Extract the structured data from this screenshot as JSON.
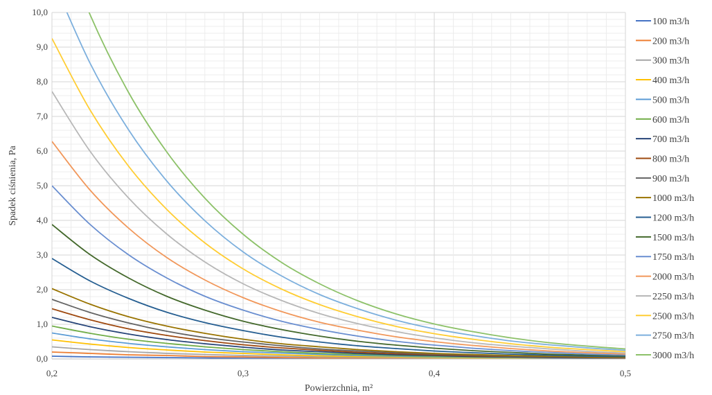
{
  "chart_data": {
    "type": "line",
    "title": "",
    "xlabel": "Powierzchnia, m²",
    "ylabel": "Spadek ciśnienia, Pa",
    "xlim": [
      0.2,
      0.5
    ],
    "ylim": [
      0,
      10
    ],
    "x_ticks": [
      "0,2",
      "0,3",
      "0,4",
      "0,5"
    ],
    "y_ticks": [
      "0,0",
      "1,0",
      "2,0",
      "3,0",
      "4,0",
      "5,0",
      "6,0",
      "7,0",
      "8,0",
      "9,0",
      "10,0"
    ],
    "grid": true,
    "legend_position": "right",
    "x": [
      0.2,
      0.22,
      0.24,
      0.26,
      0.28,
      0.3,
      0.32,
      0.34,
      0.36,
      0.38,
      0.4,
      0.42,
      0.44,
      0.46,
      0.48,
      0.5
    ],
    "series": [
      {
        "name": "100 m3/h",
        "color": "#4472C4",
        "values": [
          0.08,
          0.06,
          0.05,
          0.04,
          0.03,
          0.02,
          0.02,
          0.01,
          0.01,
          0.01,
          0.01,
          0.01,
          0.0,
          0.0,
          0.0,
          0.0
        ]
      },
      {
        "name": "200 m3/h",
        "color": "#ED7D31",
        "values": [
          0.2,
          0.16,
          0.12,
          0.1,
          0.07,
          0.06,
          0.04,
          0.03,
          0.03,
          0.02,
          0.02,
          0.01,
          0.01,
          0.01,
          0.01,
          0.01
        ]
      },
      {
        "name": "300 m3/h",
        "color": "#A5A5A5",
        "values": [
          0.35,
          0.27,
          0.21,
          0.16,
          0.13,
          0.1,
          0.08,
          0.06,
          0.05,
          0.04,
          0.03,
          0.02,
          0.02,
          0.01,
          0.01,
          0.01
        ]
      },
      {
        "name": "400 m3/h",
        "color": "#FFC000",
        "values": [
          0.55,
          0.43,
          0.33,
          0.26,
          0.2,
          0.16,
          0.12,
          0.09,
          0.07,
          0.06,
          0.04,
          0.03,
          0.03,
          0.02,
          0.02,
          0.01
        ]
      },
      {
        "name": "500 m3/h",
        "color": "#5B9BD5",
        "values": [
          0.75,
          0.58,
          0.45,
          0.35,
          0.27,
          0.21,
          0.17,
          0.13,
          0.1,
          0.08,
          0.06,
          0.05,
          0.04,
          0.03,
          0.02,
          0.02
        ]
      },
      {
        "name": "600 m3/h",
        "color": "#70AD47",
        "values": [
          0.95,
          0.74,
          0.57,
          0.45,
          0.35,
          0.27,
          0.21,
          0.16,
          0.13,
          0.1,
          0.08,
          0.06,
          0.05,
          0.04,
          0.03,
          0.02
        ]
      },
      {
        "name": "700 m3/h",
        "color": "#264478",
        "values": [
          1.2,
          0.93,
          0.72,
          0.56,
          0.44,
          0.34,
          0.26,
          0.21,
          0.16,
          0.12,
          0.1,
          0.07,
          0.06,
          0.04,
          0.03,
          0.03
        ]
      },
      {
        "name": "800 m3/h",
        "color": "#9E480E",
        "values": [
          1.45,
          1.13,
          0.87,
          0.68,
          0.53,
          0.41,
          0.32,
          0.25,
          0.19,
          0.15,
          0.12,
          0.09,
          0.07,
          0.05,
          0.04,
          0.03
        ]
      },
      {
        "name": "900 m3/h",
        "color": "#636363",
        "values": [
          1.72,
          1.34,
          1.04,
          0.8,
          0.62,
          0.49,
          0.38,
          0.29,
          0.23,
          0.18,
          0.14,
          0.11,
          0.08,
          0.06,
          0.05,
          0.04
        ]
      },
      {
        "name": "1000 m3/h",
        "color": "#997300",
        "values": [
          2.03,
          1.58,
          1.22,
          0.95,
          0.74,
          0.57,
          0.44,
          0.35,
          0.27,
          0.21,
          0.16,
          0.13,
          0.1,
          0.08,
          0.06,
          0.05
        ]
      },
      {
        "name": "1200 m3/h",
        "color": "#255E91",
        "values": [
          2.9,
          2.25,
          1.75,
          1.35,
          1.05,
          0.82,
          0.63,
          0.49,
          0.38,
          0.3,
          0.23,
          0.18,
          0.14,
          0.11,
          0.08,
          0.07
        ]
      },
      {
        "name": "1500 m3/h",
        "color": "#43682B",
        "values": [
          3.88,
          3.01,
          2.34,
          1.81,
          1.41,
          1.09,
          0.85,
          0.66,
          0.51,
          0.4,
          0.31,
          0.24,
          0.19,
          0.14,
          0.11,
          0.09
        ]
      },
      {
        "name": "1750 m3/h",
        "color": "#698ED0",
        "values": [
          5.0,
          3.88,
          3.01,
          2.34,
          1.81,
          1.41,
          1.09,
          0.85,
          0.66,
          0.51,
          0.4,
          0.31,
          0.24,
          0.19,
          0.14,
          0.11
        ]
      },
      {
        "name": "2000 m3/h",
        "color": "#F1975A",
        "values": [
          6.28,
          4.87,
          3.78,
          2.93,
          2.28,
          1.77,
          1.37,
          1.06,
          0.83,
          0.64,
          0.5,
          0.39,
          0.3,
          0.23,
          0.18,
          0.14
        ]
      },
      {
        "name": "2250 m3/h",
        "color": "#B7B7B7",
        "values": [
          7.72,
          5.99,
          4.65,
          3.61,
          2.8,
          2.17,
          1.69,
          1.31,
          1.02,
          0.79,
          0.61,
          0.47,
          0.37,
          0.29,
          0.22,
          0.17
        ]
      },
      {
        "name": "2500 m3/h",
        "color": "#FFCD33",
        "values": [
          9.25,
          7.18,
          5.57,
          4.32,
          3.35,
          2.6,
          2.02,
          1.57,
          1.22,
          0.94,
          0.73,
          0.57,
          0.44,
          0.34,
          0.27,
          0.21
        ]
      },
      {
        "name": "2750 m3/h",
        "color": "#7CAFDD",
        "values": [
          11.0,
          8.53,
          6.62,
          5.14,
          3.99,
          3.09,
          2.4,
          1.86,
          1.45,
          1.12,
          0.87,
          0.68,
          0.52,
          0.41,
          0.32,
          0.25
        ]
      },
      {
        "name": "3000 m3/h",
        "color": "#8CC168",
        "values": [
          12.8,
          9.93,
          7.7,
          5.98,
          4.64,
          3.6,
          2.79,
          2.17,
          1.68,
          1.3,
          1.01,
          0.79,
          0.61,
          0.47,
          0.37,
          0.29
        ]
      }
    ]
  }
}
